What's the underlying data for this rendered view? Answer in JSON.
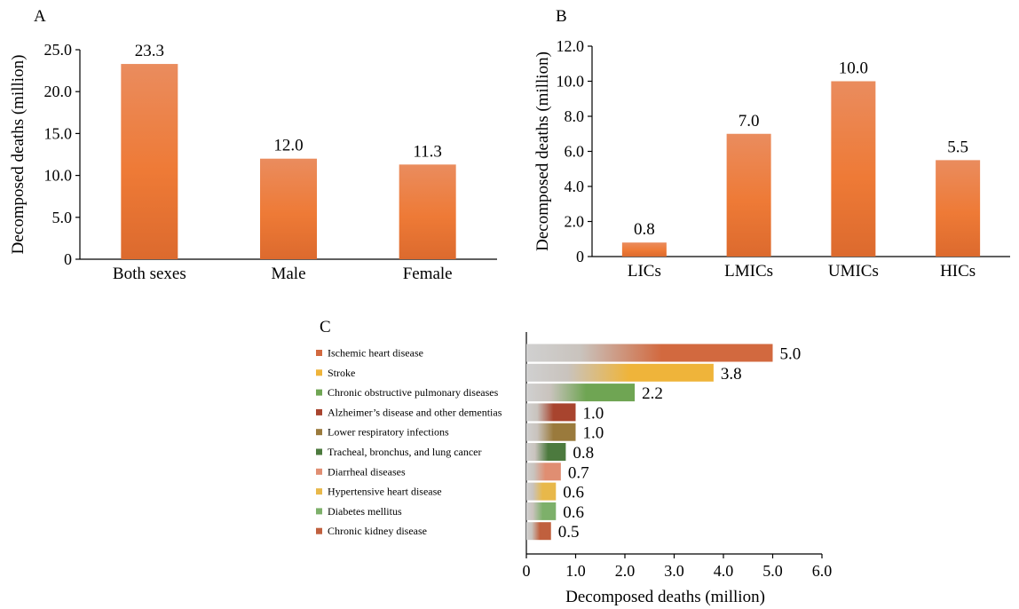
{
  "colors": {
    "bar_top": "#EA8C5E",
    "bar_mid": "#EC7A38",
    "bar_bottom": "#DC6A2E",
    "axis": "#000000"
  },
  "chart_data": [
    {
      "panel": "A",
      "type": "bar",
      "categories": [
        "Both sexes",
        "Male",
        "Female"
      ],
      "values": [
        23.3,
        12.0,
        11.3
      ],
      "value_labels": [
        "23.3",
        "12.0",
        "11.3"
      ],
      "ylabel": "Decomposed deaths (million)",
      "ylim": [
        0,
        25
      ],
      "yticks": [
        "0",
        "5.0",
        "10.0",
        "15.0",
        "20.0",
        "25.0"
      ],
      "ytick_values": [
        0,
        5,
        10,
        15,
        20,
        25
      ],
      "grid": false
    },
    {
      "panel": "B",
      "type": "bar",
      "categories": [
        "LICs",
        "LMICs",
        "UMICs",
        "HICs"
      ],
      "values": [
        0.8,
        7.0,
        10.0,
        5.5
      ],
      "value_labels": [
        "0.8",
        "7.0",
        "10.0",
        "5.5"
      ],
      "ylabel": "Decomposed deaths (million)",
      "ylim": [
        0,
        12
      ],
      "yticks": [
        "0",
        "2.0",
        "4.0",
        "6.0",
        "8.0",
        "10.0",
        "12.0"
      ],
      "ytick_values": [
        0,
        2,
        4,
        6,
        8,
        10,
        12
      ],
      "grid": false
    },
    {
      "panel": "C",
      "type": "bar",
      "orientation": "horizontal",
      "categories": [
        "Ischemic heart disease",
        "Stroke",
        "Chronic obstructive pulmonary diseases",
        "Alzheimer’s disease and other dementias",
        "Lower respiratory infections",
        "Tracheal, bronchus, and lung cancer",
        "Diarrheal diseases",
        "Hypertensive heart disease",
        "Diabetes mellitus",
        "Chronic kidney disease"
      ],
      "values": [
        5.0,
        3.8,
        2.2,
        1.0,
        1.0,
        0.8,
        0.7,
        0.6,
        0.6,
        0.5
      ],
      "value_labels": [
        "5.0",
        "3.8",
        "2.2",
        "1.0",
        "1.0",
        "0.8",
        "0.7",
        "0.6",
        "0.6",
        "0.5"
      ],
      "colors": [
        "#D2693F",
        "#EFB43A",
        "#6FA553",
        "#A8442E",
        "#9A7A3C",
        "#4C7A3E",
        "#E08E72",
        "#E8B84A",
        "#7DB06A",
        "#C0603E"
      ],
      "xlabel": "Decomposed deaths (million)",
      "xlim": [
        0,
        6
      ],
      "xticks": [
        "0",
        "1.0",
        "2.0",
        "3.0",
        "4.0",
        "5.0",
        "6.0"
      ],
      "xtick_values": [
        0,
        1,
        2,
        3,
        4,
        5,
        6
      ],
      "legend_position": "left",
      "grid": false
    }
  ]
}
